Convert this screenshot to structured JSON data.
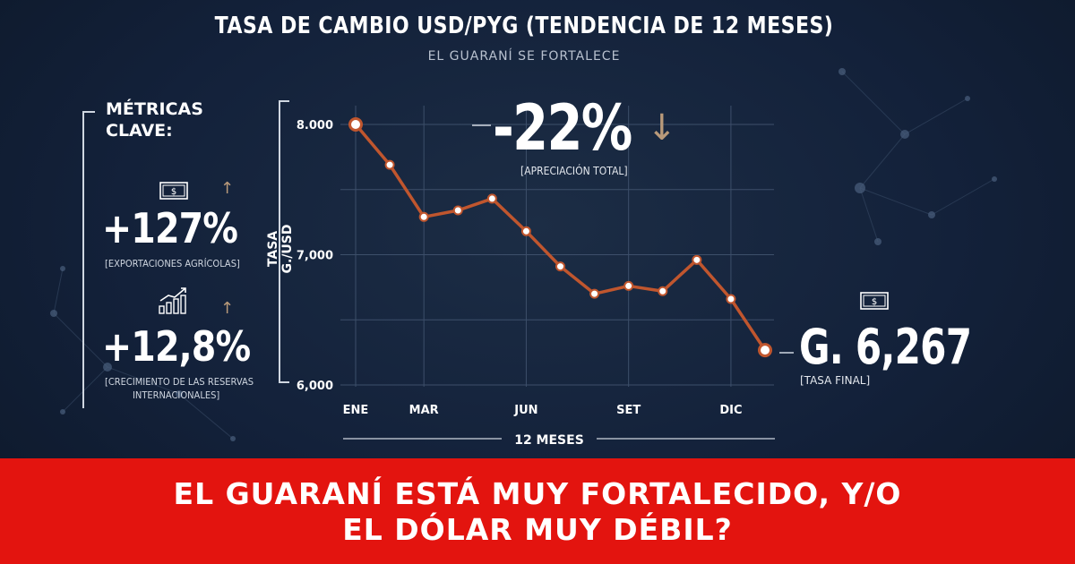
{
  "header": {
    "title": "TASA DE CAMBIO USD/PYG (TENDENCIA DE 12 MESES)",
    "subtitle": "EL GUARANÍ SE FORTALECE"
  },
  "metrics": {
    "title": "MÉTRICAS CLAVE:",
    "items": [
      {
        "value": "+127%",
        "label": "[EXPORTACIONES AGRÍCOLAS]",
        "icon": "money-icon"
      },
      {
        "value": "+12,8%",
        "label_line1": "[CRECIMIENTO DE LAS RESERVAS",
        "label_line2": "INTERNACIONALES]",
        "icon": "growth-chart-icon"
      }
    ]
  },
  "highlight": {
    "change": "-22%",
    "change_caption": "[APRECIACIÓN TOTAL]",
    "final": "G. 6,267",
    "final_caption": "[TASA FINAL]"
  },
  "banner": {
    "line1": "EL GUARANÍ ESTÁ MUY FORTALECIDO, Y/O",
    "line2": "EL DÓLAR MUY DÉBIL?"
  },
  "colors": {
    "line": "#c0562e",
    "banner": "#e3140f",
    "arrow": "#b99a7a"
  },
  "chart_data": {
    "type": "line",
    "ylabel": "TASA G./USD",
    "xlabel": "12 MESES",
    "x_tick_labels": [
      "ENE",
      "MAR",
      "JUN",
      "SET",
      "DIC"
    ],
    "x_tick_indices": [
      0,
      2,
      5,
      8,
      11
    ],
    "y_tick_labels": [
      "8.000",
      "7,000",
      "6,000"
    ],
    "y_tick_values": [
      8000,
      7000,
      6000
    ],
    "ylim": [
      6000,
      8000
    ],
    "grid": true,
    "series": [
      {
        "values": [
          8000,
          7690,
          7290,
          7340,
          7430,
          7180,
          6910,
          6700,
          6760,
          6720,
          6960,
          6660,
          6267
        ]
      }
    ]
  }
}
